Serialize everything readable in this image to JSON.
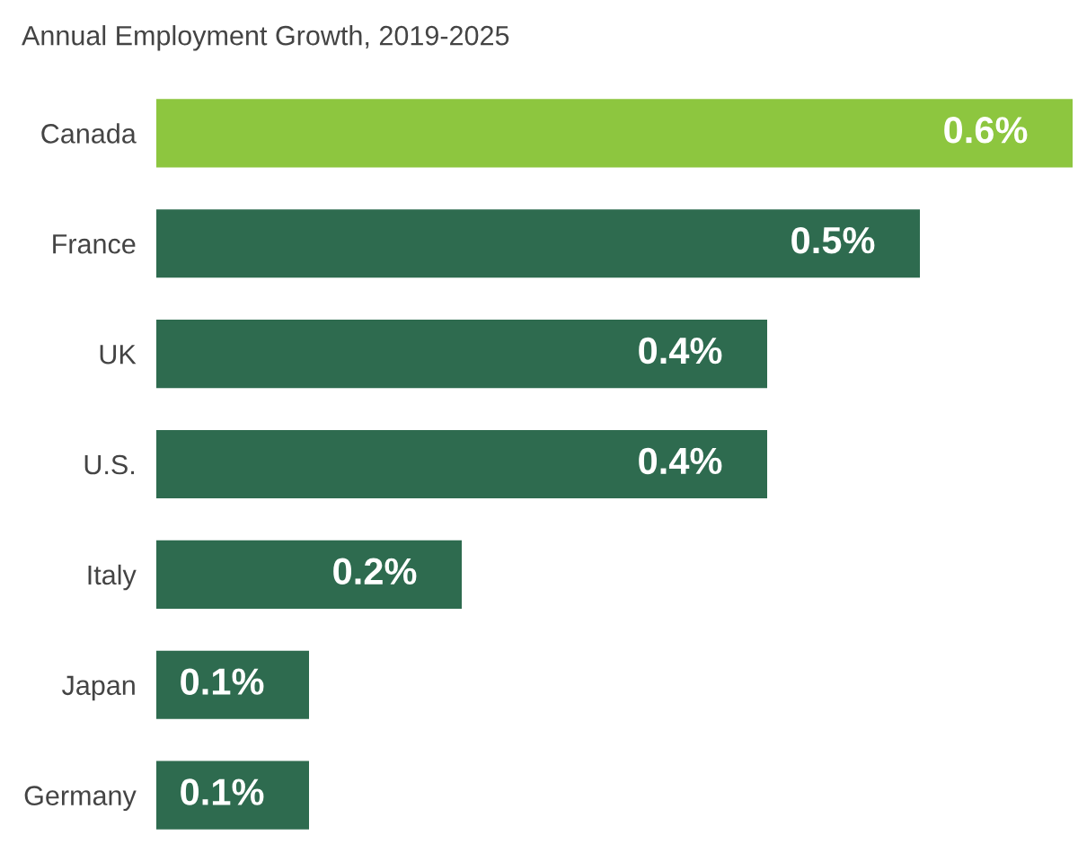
{
  "chart_data": {
    "type": "bar",
    "orientation": "horizontal",
    "title": "Annual Employment Growth, 2019-2025",
    "categories": [
      "Canada",
      "France",
      "UK",
      "U.S.",
      "Italy",
      "Japan",
      "Germany"
    ],
    "values": [
      0.6,
      0.5,
      0.4,
      0.4,
      0.2,
      0.1,
      0.1
    ],
    "colors": [
      "#8dc63f",
      "#2e6b4f",
      "#2e6b4f",
      "#2e6b4f",
      "#2e6b4f",
      "#2e6b4f",
      "#2e6b4f"
    ],
    "value_labels": [
      "0.6%",
      "0.5%",
      "0.4%",
      "0.4%",
      "0.2%",
      "0.1%",
      "0.1%"
    ],
    "grid": false,
    "legend": false
  }
}
